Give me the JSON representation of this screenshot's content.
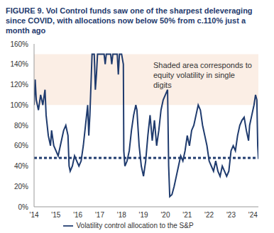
{
  "chart_data": {
    "type": "line",
    "title": "FIGURE 9. Vol Control funds saw one of the sharpest deleveraging since COVID, with allocations now below 50% from c.110% just a month ago",
    "annotation": "Shaded area corresponds to equity volatility in single digits",
    "x": [
      2014.0,
      2014.05,
      2014.1,
      2014.2,
      2014.3,
      2014.4,
      2014.5,
      2014.55,
      2014.65,
      2014.75,
      2014.8,
      2014.9,
      2015.0,
      2015.1,
      2015.2,
      2015.35,
      2015.45,
      2015.55,
      2015.6,
      2015.65,
      2015.75,
      2015.85,
      2015.95,
      2016.05,
      2016.15,
      2016.25,
      2016.35,
      2016.45,
      2016.5,
      2016.55,
      2016.6,
      2016.65,
      2016.75,
      2016.8,
      2016.85,
      2016.9,
      2017.0,
      2017.2,
      2017.25,
      2017.3,
      2017.5,
      2017.55,
      2017.6,
      2017.8,
      2017.85,
      2017.9,
      2018.0,
      2018.08,
      2018.1,
      2018.15,
      2018.25,
      2018.35,
      2018.45,
      2018.55,
      2018.65,
      2018.7,
      2018.8,
      2018.9,
      2019.0,
      2019.1,
      2019.2,
      2019.3,
      2019.4,
      2019.5,
      2019.6,
      2019.7,
      2019.8,
      2019.9,
      2020.0,
      2020.1,
      2020.15,
      2020.2,
      2020.3,
      2020.4,
      2020.5,
      2020.6,
      2020.7,
      2020.8,
      2020.9,
      2021.0,
      2021.1,
      2021.2,
      2021.3,
      2021.4,
      2021.5,
      2021.6,
      2021.7,
      2021.8,
      2021.9,
      2022.0,
      2022.1,
      2022.2,
      2022.3,
      2022.4,
      2022.5,
      2022.6,
      2022.7,
      2022.8,
      2022.9,
      2023.0,
      2023.1,
      2023.2,
      2023.3,
      2023.4,
      2023.5,
      2023.6,
      2023.7,
      2023.8,
      2023.85,
      2023.95,
      2024.05,
      2024.12,
      2024.18,
      2024.22,
      2024.25
    ],
    "series": [
      {
        "name": "Volatility control allocation to the S&P",
        "color": "#1f3b6e",
        "values": [
          100,
          125,
          105,
          95,
          110,
          100,
          115,
          90,
          70,
          60,
          75,
          60,
          55,
          50,
          60,
          75,
          80,
          70,
          40,
          35,
          40,
          50,
          45,
          40,
          45,
          60,
          80,
          100,
          70,
          90,
          120,
          150,
          150,
          115,
          130,
          150,
          150,
          150,
          140,
          150,
          150,
          140,
          150,
          150,
          130,
          150,
          150,
          140,
          55,
          40,
          45,
          55,
          75,
          90,
          100,
          95,
          60,
          40,
          30,
          45,
          70,
          90,
          65,
          85,
          60,
          75,
          95,
          105,
          110,
          115,
          40,
          10,
          12,
          20,
          30,
          40,
          50,
          45,
          55,
          70,
          60,
          75,
          80,
          90,
          100,
          95,
          80,
          70,
          60,
          45,
          40,
          35,
          45,
          35,
          30,
          40,
          35,
          30,
          35,
          55,
          60,
          55,
          70,
          80,
          85,
          88,
          75,
          65,
          80,
          90,
          100,
          110,
          105,
          60,
          48
        ]
      }
    ],
    "shaded_y": [
      100,
      150
    ],
    "shade_color": "#fbeee5",
    "reference_y": 48,
    "reference_line_style": "dotted",
    "xlim": [
      2014,
      2024.25
    ],
    "xticks": [
      {
        "value": 2014,
        "label": "'14"
      },
      {
        "value": 2015,
        "label": "'15"
      },
      {
        "value": 2016,
        "label": "'16"
      },
      {
        "value": 2017,
        "label": "'17"
      },
      {
        "value": 2018,
        "label": "'18"
      },
      {
        "value": 2019,
        "label": "'19"
      },
      {
        "value": 2020,
        "label": "'20"
      },
      {
        "value": 2021,
        "label": "'21"
      },
      {
        "value": 2022,
        "label": "'22"
      },
      {
        "value": 2023,
        "label": "'23"
      },
      {
        "value": 2024,
        "label": "'24"
      }
    ],
    "ylim": [
      0,
      160
    ],
    "yticks": [
      {
        "value": 0,
        "label": "0%"
      },
      {
        "value": 20,
        "label": "20%"
      },
      {
        "value": 40,
        "label": "40%"
      },
      {
        "value": 60,
        "label": "60%"
      },
      {
        "value": 80,
        "label": "80%"
      },
      {
        "value": 100,
        "label": "100%"
      },
      {
        "value": 120,
        "label": "120%"
      },
      {
        "value": 140,
        "label": "140%"
      },
      {
        "value": 160,
        "label": "160%"
      }
    ],
    "grid": false,
    "legend": "bottom"
  }
}
